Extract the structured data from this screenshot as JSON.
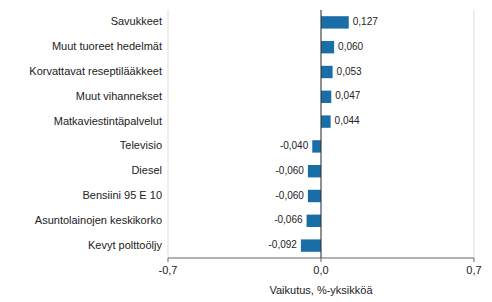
{
  "chart_data": {
    "type": "bar",
    "orientation": "horizontal",
    "categories": [
      "Kevyt polttoöljy",
      "Asuntolainojen keskikorko",
      "Bensiini 95 E 10",
      "Diesel",
      "Televisio",
      "Matkaviestintäpalvelut",
      "Muut vihannekset",
      "Korvattavat reseptilääkkeet",
      "Muut tuoreet hedelmät",
      "Savukkeet"
    ],
    "values": [
      -0.092,
      -0.066,
      -0.06,
      -0.06,
      -0.04,
      0.044,
      0.047,
      0.053,
      0.06,
      0.127
    ],
    "value_labels": [
      "-0,092",
      "-0,066",
      "-0,060",
      "-0,060",
      "-0,040",
      "0,044",
      "0,047",
      "0,053",
      "0,060",
      "0,127"
    ],
    "data_labels": true,
    "color": "#1a6ea8",
    "xlabel": "Vaikutus, %-yksikköä",
    "xlim": [
      -0.7,
      0.7
    ],
    "xticks": [
      {
        "value": -0.7,
        "label": "-0,7"
      },
      {
        "value": 0.0,
        "label": "0,0"
      },
      {
        "value": 0.7,
        "label": "0,7"
      }
    ],
    "grid": true
  }
}
